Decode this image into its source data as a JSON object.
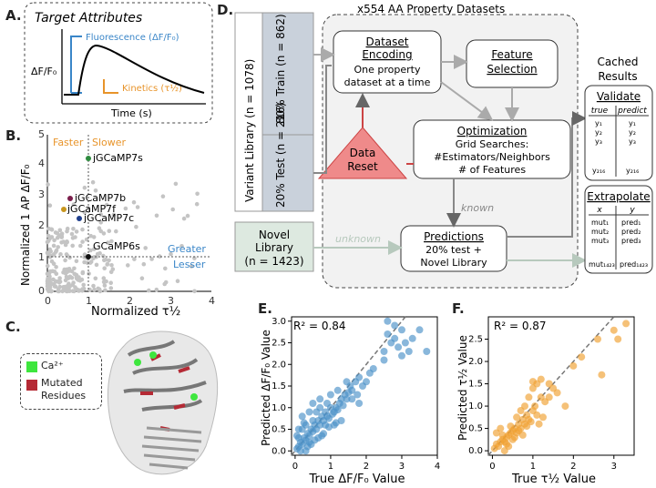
{
  "panels": {
    "a": "A.",
    "b": "B.",
    "c": "C.",
    "d": "D.",
    "e": "E.",
    "f": "F."
  },
  "panelA": {
    "title": "Target Attributes",
    "ylabel": "ΔF/F₀",
    "xlabel": "Time (s)",
    "fluor_label": "Fluorescence (ΔF/F₀)",
    "kinetics_label": "Kinetics (τ½)"
  },
  "panelB": {
    "ylabel": "Normalized 1 AP ΔF/F₀",
    "xlabel": "Normalized τ½",
    "faster": "Faster",
    "slower": "Slower",
    "greater": "Greater",
    "lesser": "Lesser",
    "xticks": [
      "0",
      "1",
      "2",
      "3",
      "4"
    ],
    "yticks": [
      "0",
      "1",
      "2",
      "3",
      "4",
      "5"
    ],
    "labels": {
      "g7s": "jGCaMP7s",
      "g7b": "jGCaMP7b",
      "g7f": "jGCaMP7f",
      "g7c": "jGCaMP7c",
      "g6s": "GCaMP6s"
    },
    "colors": {
      "g7s": "#2e8b3e",
      "g7b": "#7b1e4b",
      "g7f": "#c8961e",
      "g7c": "#1f3e8c",
      "g6s": "#111111",
      "bg": "#bdbdbd",
      "blue": "#3a86c8",
      "orange": "#e8942a"
    }
  },
  "panelC": {
    "legend_ca": "Ca²⁺",
    "legend_mut1": "Mutated",
    "legend_mut2": "Residues"
  },
  "panelD": {
    "title": "x554 AA Property Datasets",
    "variant": "Variant Library (n = 1078)",
    "train": "80% Train (n = 862)",
    "test": "20% Test (n = 216)",
    "novel1": "Novel",
    "novel2": "Library",
    "novel3": "(n = 1423)",
    "enc_title": "Dataset",
    "enc_title2": "Encoding",
    "enc_sub1": "One property",
    "enc_sub2": "dataset at a time",
    "feat1": "Feature",
    "feat2": "Selection",
    "opt_title": "Optimization",
    "opt1": "Grid Searches:",
    "opt2": "#Estimators/Neighbors",
    "opt3": "# of Features",
    "reset1": "Data",
    "reset2": "Reset",
    "known": "known",
    "unknown": "unknown",
    "pred_title": "Predictions",
    "pred1": "20% test +",
    "pred2": "Novel Library",
    "cached1": "Cached",
    "cached2": "Results",
    "validate": "Validate",
    "val_h1": "true",
    "val_h2": "predict",
    "extrapolate": "Extrapolate",
    "ext_h1": "x",
    "ext_h2": "y"
  },
  "chart_data": [
    {
      "type": "scatter",
      "panel": "E",
      "xlabel": "True ΔF/F₀ Value",
      "ylabel": "Predicted ΔF/F₀ Value",
      "annotation": "R² = 0.84",
      "xlim": [
        -0.1,
        4.0
      ],
      "ylim": [
        -0.1,
        3.1
      ],
      "xticks": [
        0,
        1,
        2,
        3,
        4
      ],
      "yticks": [
        0.0,
        0.5,
        1.0,
        1.5,
        2.0,
        2.5,
        3.0
      ],
      "color": "#4a90c8",
      "points": [
        [
          0.05,
          0.05
        ],
        [
          0.1,
          0.1
        ],
        [
          0.15,
          0.2
        ],
        [
          0.2,
          0.15
        ],
        [
          0.25,
          0.3
        ],
        [
          0.3,
          0.25
        ],
        [
          0.35,
          0.4
        ],
        [
          0.4,
          0.35
        ],
        [
          0.45,
          0.5
        ],
        [
          0.5,
          0.45
        ],
        [
          0.55,
          0.6
        ],
        [
          0.6,
          0.5
        ],
        [
          0.65,
          0.7
        ],
        [
          0.7,
          0.6
        ],
        [
          0.75,
          0.8
        ],
        [
          0.8,
          0.7
        ],
        [
          0.85,
          0.9
        ],
        [
          0.9,
          0.8
        ],
        [
          0.95,
          0.75
        ],
        [
          1.0,
          1.0
        ],
        [
          1.05,
          0.85
        ],
        [
          1.1,
          0.9
        ],
        [
          1.15,
          1.0
        ],
        [
          1.2,
          0.95
        ],
        [
          1.25,
          1.1
        ],
        [
          1.3,
          1.2
        ],
        [
          1.35,
          1.05
        ],
        [
          1.4,
          1.3
        ],
        [
          1.45,
          1.2
        ],
        [
          1.5,
          1.35
        ],
        [
          1.55,
          1.5
        ],
        [
          1.6,
          1.4
        ],
        [
          1.7,
          1.6
        ],
        [
          1.75,
          1.3
        ],
        [
          1.8,
          1.7
        ],
        [
          1.9,
          1.5
        ],
        [
          2.0,
          1.6
        ],
        [
          2.1,
          1.8
        ],
        [
          2.2,
          1.9
        ],
        [
          0.1,
          0.3
        ],
        [
          0.2,
          0.5
        ],
        [
          0.3,
          0.6
        ],
        [
          0.4,
          0.2
        ],
        [
          0.5,
          0.7
        ],
        [
          0.6,
          0.9
        ],
        [
          0.7,
          1.0
        ],
        [
          0.8,
          0.4
        ],
        [
          0.9,
          1.1
        ],
        [
          1.0,
          1.3
        ],
        [
          1.1,
          0.6
        ],
        [
          1.2,
          1.4
        ],
        [
          0.15,
          0.0
        ],
        [
          0.35,
          0.1
        ],
        [
          0.55,
          0.25
        ],
        [
          0.75,
          0.35
        ],
        [
          0.95,
          0.55
        ],
        [
          1.15,
          0.65
        ],
        [
          2.5,
          2.3
        ],
        [
          2.6,
          2.7
        ],
        [
          2.7,
          2.5
        ],
        [
          2.8,
          2.6
        ],
        [
          2.9,
          2.4
        ],
        [
          3.0,
          2.8
        ],
        [
          3.1,
          2.5
        ],
        [
          3.2,
          2.3
        ],
        [
          3.3,
          2.6
        ],
        [
          3.5,
          2.8
        ],
        [
          3.7,
          2.3
        ],
        [
          2.6,
          3.0
        ],
        [
          3.0,
          2.2
        ],
        [
          2.5,
          2.1
        ],
        [
          2.8,
          2.9
        ],
        [
          0.05,
          0.35
        ],
        [
          0.1,
          0.5
        ],
        [
          0.25,
          0.65
        ],
        [
          0.3,
          0.0
        ],
        [
          0.45,
          0.15
        ],
        [
          0.65,
          0.3
        ],
        [
          0.85,
          0.6
        ],
        [
          1.3,
          0.7
        ],
        [
          1.45,
          1.6
        ],
        [
          1.6,
          1.2
        ],
        [
          1.8,
          1.1
        ],
        [
          0.2,
          0.8
        ],
        [
          0.4,
          0.9
        ],
        [
          0.5,
          1.1
        ],
        [
          0.7,
          1.2
        ]
      ]
    },
    {
      "type": "scatter",
      "panel": "F",
      "xlabel": "True τ½ Value",
      "ylabel": "Predicted τ½ Value",
      "annotation": "R² = 0.87",
      "xlim": [
        -0.1,
        3.5
      ],
      "ylim": [
        -0.1,
        3.0
      ],
      "xticks": [
        0,
        1,
        2,
        3
      ],
      "yticks": [
        0.0,
        0.5,
        1.0,
        1.5,
        2.0,
        2.5
      ],
      "color": "#f0a030",
      "points": [
        [
          0.05,
          0.05
        ],
        [
          0.1,
          0.15
        ],
        [
          0.15,
          0.1
        ],
        [
          0.2,
          0.2
        ],
        [
          0.25,
          0.25
        ],
        [
          0.3,
          0.2
        ],
        [
          0.35,
          0.3
        ],
        [
          0.4,
          0.35
        ],
        [
          0.45,
          0.4
        ],
        [
          0.5,
          0.45
        ],
        [
          0.55,
          0.5
        ],
        [
          0.6,
          0.4
        ],
        [
          0.65,
          0.6
        ],
        [
          0.7,
          0.5
        ],
        [
          0.75,
          0.7
        ],
        [
          0.8,
          0.6
        ],
        [
          0.85,
          0.8
        ],
        [
          0.9,
          0.7
        ],
        [
          1.0,
          0.9
        ],
        [
          1.05,
          1.0
        ],
        [
          1.1,
          0.8
        ],
        [
          1.2,
          1.2
        ],
        [
          1.3,
          1.1
        ],
        [
          1.4,
          1.5
        ],
        [
          1.5,
          1.4
        ],
        [
          1.6,
          1.3
        ],
        [
          1.8,
          1.0
        ],
        [
          2.0,
          1.9
        ],
        [
          2.2,
          2.1
        ],
        [
          2.6,
          2.5
        ],
        [
          2.7,
          1.7
        ],
        [
          3.0,
          2.7
        ],
        [
          3.1,
          2.5
        ],
        [
          3.3,
          2.85
        ],
        [
          0.1,
          0.4
        ],
        [
          0.2,
          0.5
        ],
        [
          0.3,
          0.0
        ],
        [
          0.4,
          0.1
        ],
        [
          0.5,
          0.25
        ],
        [
          0.6,
          0.75
        ],
        [
          0.7,
          0.9
        ],
        [
          0.8,
          1.0
        ],
        [
          0.9,
          1.2
        ],
        [
          1.0,
          1.4
        ],
        [
          1.1,
          1.5
        ],
        [
          1.15,
          0.6
        ],
        [
          1.25,
          0.75
        ],
        [
          1.4,
          1.2
        ],
        [
          0.25,
          0.35
        ],
        [
          0.35,
          0.15
        ],
        [
          0.45,
          0.55
        ],
        [
          0.55,
          0.3
        ],
        [
          0.65,
          0.45
        ],
        [
          0.75,
          0.35
        ],
        [
          0.85,
          0.55
        ],
        [
          0.95,
          0.65
        ],
        [
          1.0,
          1.55
        ],
        [
          1.2,
          1.6
        ]
      ]
    }
  ]
}
